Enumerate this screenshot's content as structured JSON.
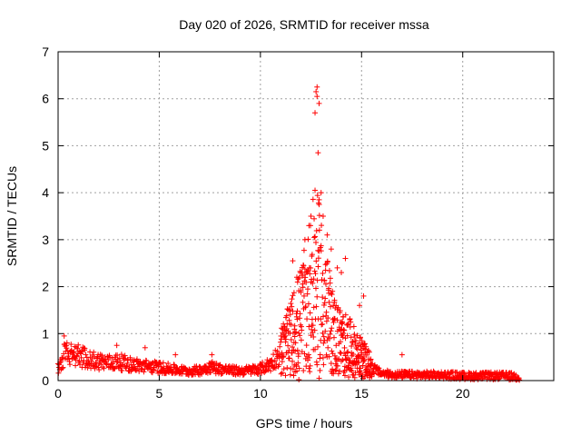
{
  "chart_data": {
    "type": "scatter",
    "title": "Day 020 of 2026, SRMTID for receiver mssa",
    "xlabel": "GPS time / hours",
    "ylabel": "SRMTID / TECUs",
    "xlim": [
      0,
      24.5
    ],
    "ylim": [
      0,
      7
    ],
    "xticks": [
      0,
      5,
      10,
      15,
      20
    ],
    "yticks": [
      0,
      1,
      2,
      3,
      4,
      5,
      6,
      7
    ],
    "grid": true,
    "marker": "+",
    "color": "#ff0000",
    "series": [
      {
        "name": "SRMTID",
        "envelope": {
          "x": [
            0.0,
            0.2,
            0.4,
            0.6,
            1.0,
            1.5,
            2.0,
            2.5,
            3.0,
            3.5,
            4.0,
            4.5,
            5.0,
            5.5,
            6.0,
            6.5,
            7.0,
            7.5,
            8.0,
            8.5,
            9.0,
            9.5,
            10.0,
            10.5,
            11.0,
            11.5,
            12.0,
            12.4,
            12.7,
            13.0,
            13.3,
            13.6,
            14.0,
            14.4,
            14.8,
            15.2,
            15.6,
            16.0,
            16.5,
            17.0,
            17.5,
            18.0,
            19.0,
            20.0,
            21.0,
            22.0,
            22.8
          ],
          "y": [
            0.25,
            0.45,
            0.65,
            0.55,
            0.55,
            0.45,
            0.42,
            0.38,
            0.4,
            0.35,
            0.32,
            0.3,
            0.28,
            0.25,
            0.22,
            0.2,
            0.22,
            0.3,
            0.25,
            0.22,
            0.2,
            0.22,
            0.25,
            0.35,
            0.6,
            0.9,
            1.3,
            1.7,
            2.2,
            1.9,
            1.4,
            1.0,
            0.8,
            0.7,
            0.55,
            0.4,
            0.25,
            0.15,
            0.13,
            0.12,
            0.12,
            0.12,
            0.12,
            0.1,
            0.1,
            0.1,
            0.08
          ]
        },
        "outliers": [
          {
            "x": 12.8,
            "y": 6.25
          },
          {
            "x": 12.75,
            "y": 6.15
          },
          {
            "x": 12.8,
            "y": 6.05
          },
          {
            "x": 12.9,
            "y": 5.9
          },
          {
            "x": 12.7,
            "y": 5.7
          },
          {
            "x": 12.85,
            "y": 4.85
          },
          {
            "x": 13.0,
            "y": 4.0
          },
          {
            "x": 12.7,
            "y": 4.05
          },
          {
            "x": 12.9,
            "y": 3.85
          },
          {
            "x": 13.1,
            "y": 3.5
          },
          {
            "x": 12.5,
            "y": 3.5
          },
          {
            "x": 12.4,
            "y": 3.3
          },
          {
            "x": 13.3,
            "y": 3.1
          },
          {
            "x": 12.2,
            "y": 3.0
          },
          {
            "x": 13.5,
            "y": 2.8
          },
          {
            "x": 14.2,
            "y": 2.6
          },
          {
            "x": 11.6,
            "y": 2.55
          },
          {
            "x": 14.0,
            "y": 2.3
          },
          {
            "x": 13.8,
            "y": 2.4
          },
          {
            "x": 11.8,
            "y": 2.2
          },
          {
            "x": 15.1,
            "y": 1.8
          },
          {
            "x": 14.9,
            "y": 1.6
          },
          {
            "x": 17.0,
            "y": 0.55
          },
          {
            "x": 4.3,
            "y": 0.7
          },
          {
            "x": 0.3,
            "y": 0.95
          },
          {
            "x": 2.9,
            "y": 0.75
          },
          {
            "x": 5.8,
            "y": 0.55
          },
          {
            "x": 7.6,
            "y": 0.55
          },
          {
            "x": 11.9,
            "y": 0.02
          },
          {
            "x": 12.9,
            "y": 0.05
          }
        ]
      }
    ]
  }
}
